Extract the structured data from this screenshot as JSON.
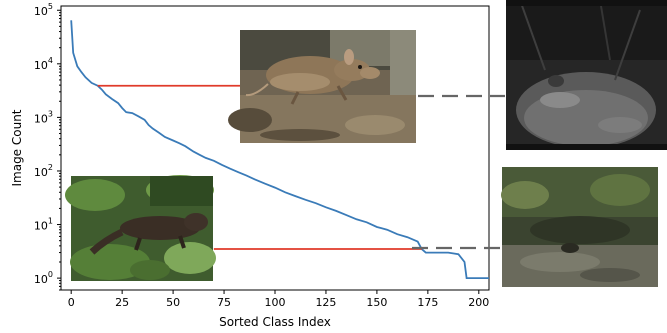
{
  "chart_data": {
    "type": "line",
    "title": "",
    "xlabel": "Sorted Class Index",
    "ylabel": "Image Count",
    "xlim": [
      -5,
      205
    ],
    "ylim": [
      0.6,
      120000
    ],
    "yscale": "log",
    "grid": false,
    "x_ticks": [
      {
        "value": 0,
        "label": "0"
      },
      {
        "value": 25,
        "label": "25"
      },
      {
        "value": 50,
        "label": "50"
      },
      {
        "value": 75,
        "label": "75"
      },
      {
        "value": 100,
        "label": "100"
      },
      {
        "value": 125,
        "label": "125"
      },
      {
        "value": 150,
        "label": "150"
      },
      {
        "value": 175,
        "label": "175"
      },
      {
        "value": 200,
        "label": "200"
      }
    ],
    "y_ticks": [
      {
        "value": 1,
        "base": "10",
        "exp": "0"
      },
      {
        "value": 10,
        "base": "10",
        "exp": "1"
      },
      {
        "value": 100,
        "base": "10",
        "exp": "2"
      },
      {
        "value": 1000,
        "base": "10",
        "exp": "3"
      },
      {
        "value": 10000,
        "base": "10",
        "exp": "4"
      },
      {
        "value": 100000,
        "base": "10",
        "exp": "5"
      }
    ],
    "series": [
      {
        "name": "",
        "color": "#3a7bb8",
        "points": [
          [
            0,
            65000
          ],
          [
            1,
            16000
          ],
          [
            3,
            9000
          ],
          [
            5,
            7000
          ],
          [
            7,
            5600
          ],
          [
            10,
            4400
          ],
          [
            13,
            3900
          ],
          [
            15,
            3300
          ],
          [
            17,
            2700
          ],
          [
            20,
            2200
          ],
          [
            23,
            1850
          ],
          [
            25,
            1500
          ],
          [
            27,
            1250
          ],
          [
            30,
            1200
          ],
          [
            33,
            1050
          ],
          [
            36,
            900
          ],
          [
            38,
            720
          ],
          [
            40,
            620
          ],
          [
            43,
            520
          ],
          [
            46,
            430
          ],
          [
            50,
            370
          ],
          [
            53,
            330
          ],
          [
            56,
            290
          ],
          [
            60,
            230
          ],
          [
            63,
            200
          ],
          [
            66,
            175
          ],
          [
            70,
            155
          ],
          [
            74,
            130
          ],
          [
            78,
            110
          ],
          [
            82,
            95
          ],
          [
            86,
            82
          ],
          [
            90,
            70
          ],
          [
            95,
            58
          ],
          [
            100,
            49
          ],
          [
            105,
            40
          ],
          [
            110,
            34
          ],
          [
            115,
            29
          ],
          [
            120,
            25
          ],
          [
            125,
            21
          ],
          [
            130,
            18
          ],
          [
            135,
            15
          ],
          [
            140,
            12.5
          ],
          [
            145,
            11
          ],
          [
            150,
            9
          ],
          [
            155,
            8
          ],
          [
            160,
            6.6
          ],
          [
            165,
            5.8
          ],
          [
            170,
            4.8
          ],
          [
            172,
            3.5
          ],
          [
            174,
            3.0
          ],
          [
            180,
            3.0
          ],
          [
            185,
            3.0
          ],
          [
            190,
            2.8
          ],
          [
            193,
            2.0
          ],
          [
            194,
            1.0
          ],
          [
            197,
            1.0
          ],
          [
            200,
            1.0
          ],
          [
            205,
            1.0
          ]
        ]
      }
    ],
    "annotations": [
      {
        "name": "head-class-line",
        "x_from": 13,
        "x_to": 90,
        "y": 3900,
        "color": "#e03a2a"
      },
      {
        "name": "tail-class-line",
        "x_from": 70,
        "x_to": 172,
        "y": 3.5,
        "color": "#e03a2a"
      }
    ],
    "dashed_connectors": [
      {
        "name": "head-connector",
        "color": "#666666"
      },
      {
        "name": "tail-connector",
        "color": "#666666"
      }
    ],
    "inset_photos": [
      {
        "name": "head-class-photo",
        "kind": "daylight photo of a rodent on leaf litter"
      },
      {
        "name": "tail-class-photo",
        "kind": "photo of a mustelid in green vegetation"
      },
      {
        "name": "camera-trap-night-photo",
        "kind": "night infrared camera-trap photo"
      },
      {
        "name": "camera-trap-forest-photo",
        "kind": "dim forest camera-trap photo"
      }
    ]
  }
}
